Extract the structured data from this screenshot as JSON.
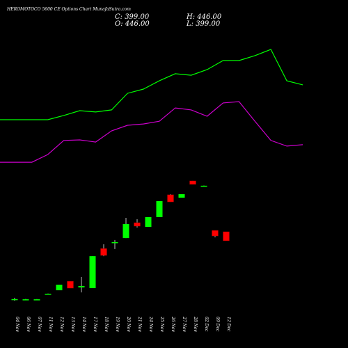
{
  "chart_data": {
    "type": "candlestick",
    "title": "HEROMOTOCO 5600 CE Options Chart MunafaSutra.com",
    "header": {
      "close": "C: 399.00",
      "high": "H: 446.00",
      "open": "O: 446.00",
      "low": "L: 399.00"
    },
    "categories": [
      "04 Nov",
      "06 Nov",
      "07 Nov",
      "11 Nov",
      "12 Nov",
      "13 Nov",
      "14 Nov",
      "17 Nov",
      "18 Nov",
      "19 Nov",
      "20 Nov",
      "21 Nov",
      "24 Nov",
      "25 Nov",
      "26 Nov",
      "27 Nov",
      "28 Nov",
      "02 Dec",
      "09 Dec",
      "12 Dec"
    ],
    "open": [
      95,
      95,
      95,
      124,
      142,
      189,
      157,
      153,
      359,
      390,
      413,
      493,
      471,
      522,
      638,
      623,
      710,
      685,
      453,
      446
    ],
    "high": [
      103,
      97,
      96,
      125,
      171,
      189,
      211,
      319,
      381,
      403,
      518,
      511,
      522,
      605,
      641,
      641,
      710,
      686,
      453,
      446
    ],
    "low": [
      88,
      93,
      94,
      123,
      142,
      153,
      131,
      153,
      319,
      356,
      413,
      468,
      471,
      522,
      601,
      623,
      692,
      684,
      417,
      399
    ],
    "close": [
      96,
      95,
      95,
      124,
      171,
      153,
      164,
      319,
      323,
      392,
      486,
      475,
      522,
      605,
      601,
      641,
      692,
      685,
      424,
      399
    ],
    "up_color": "#00ff00",
    "down_color": "#ff0000",
    "series": [
      {
        "color": "#00ff00",
        "values": [
          1028,
          1028,
          1028,
          1028,
          1050,
          1075,
          1068,
          1079,
          1165,
          1187,
          1230,
          1267,
          1259,
          1288,
          1335,
          1335,
          1361,
          1393,
          1230,
          1209
        ]
      },
      {
        "color": "#cc00cc",
        "values": [
          807,
          807,
          807,
          847,
          920,
          923,
          912,
          970,
          999,
          1006,
          1020,
          1089,
          1079,
          1046,
          1115,
          1122,
          1020,
          920,
          891,
          898
        ]
      }
    ]
  }
}
